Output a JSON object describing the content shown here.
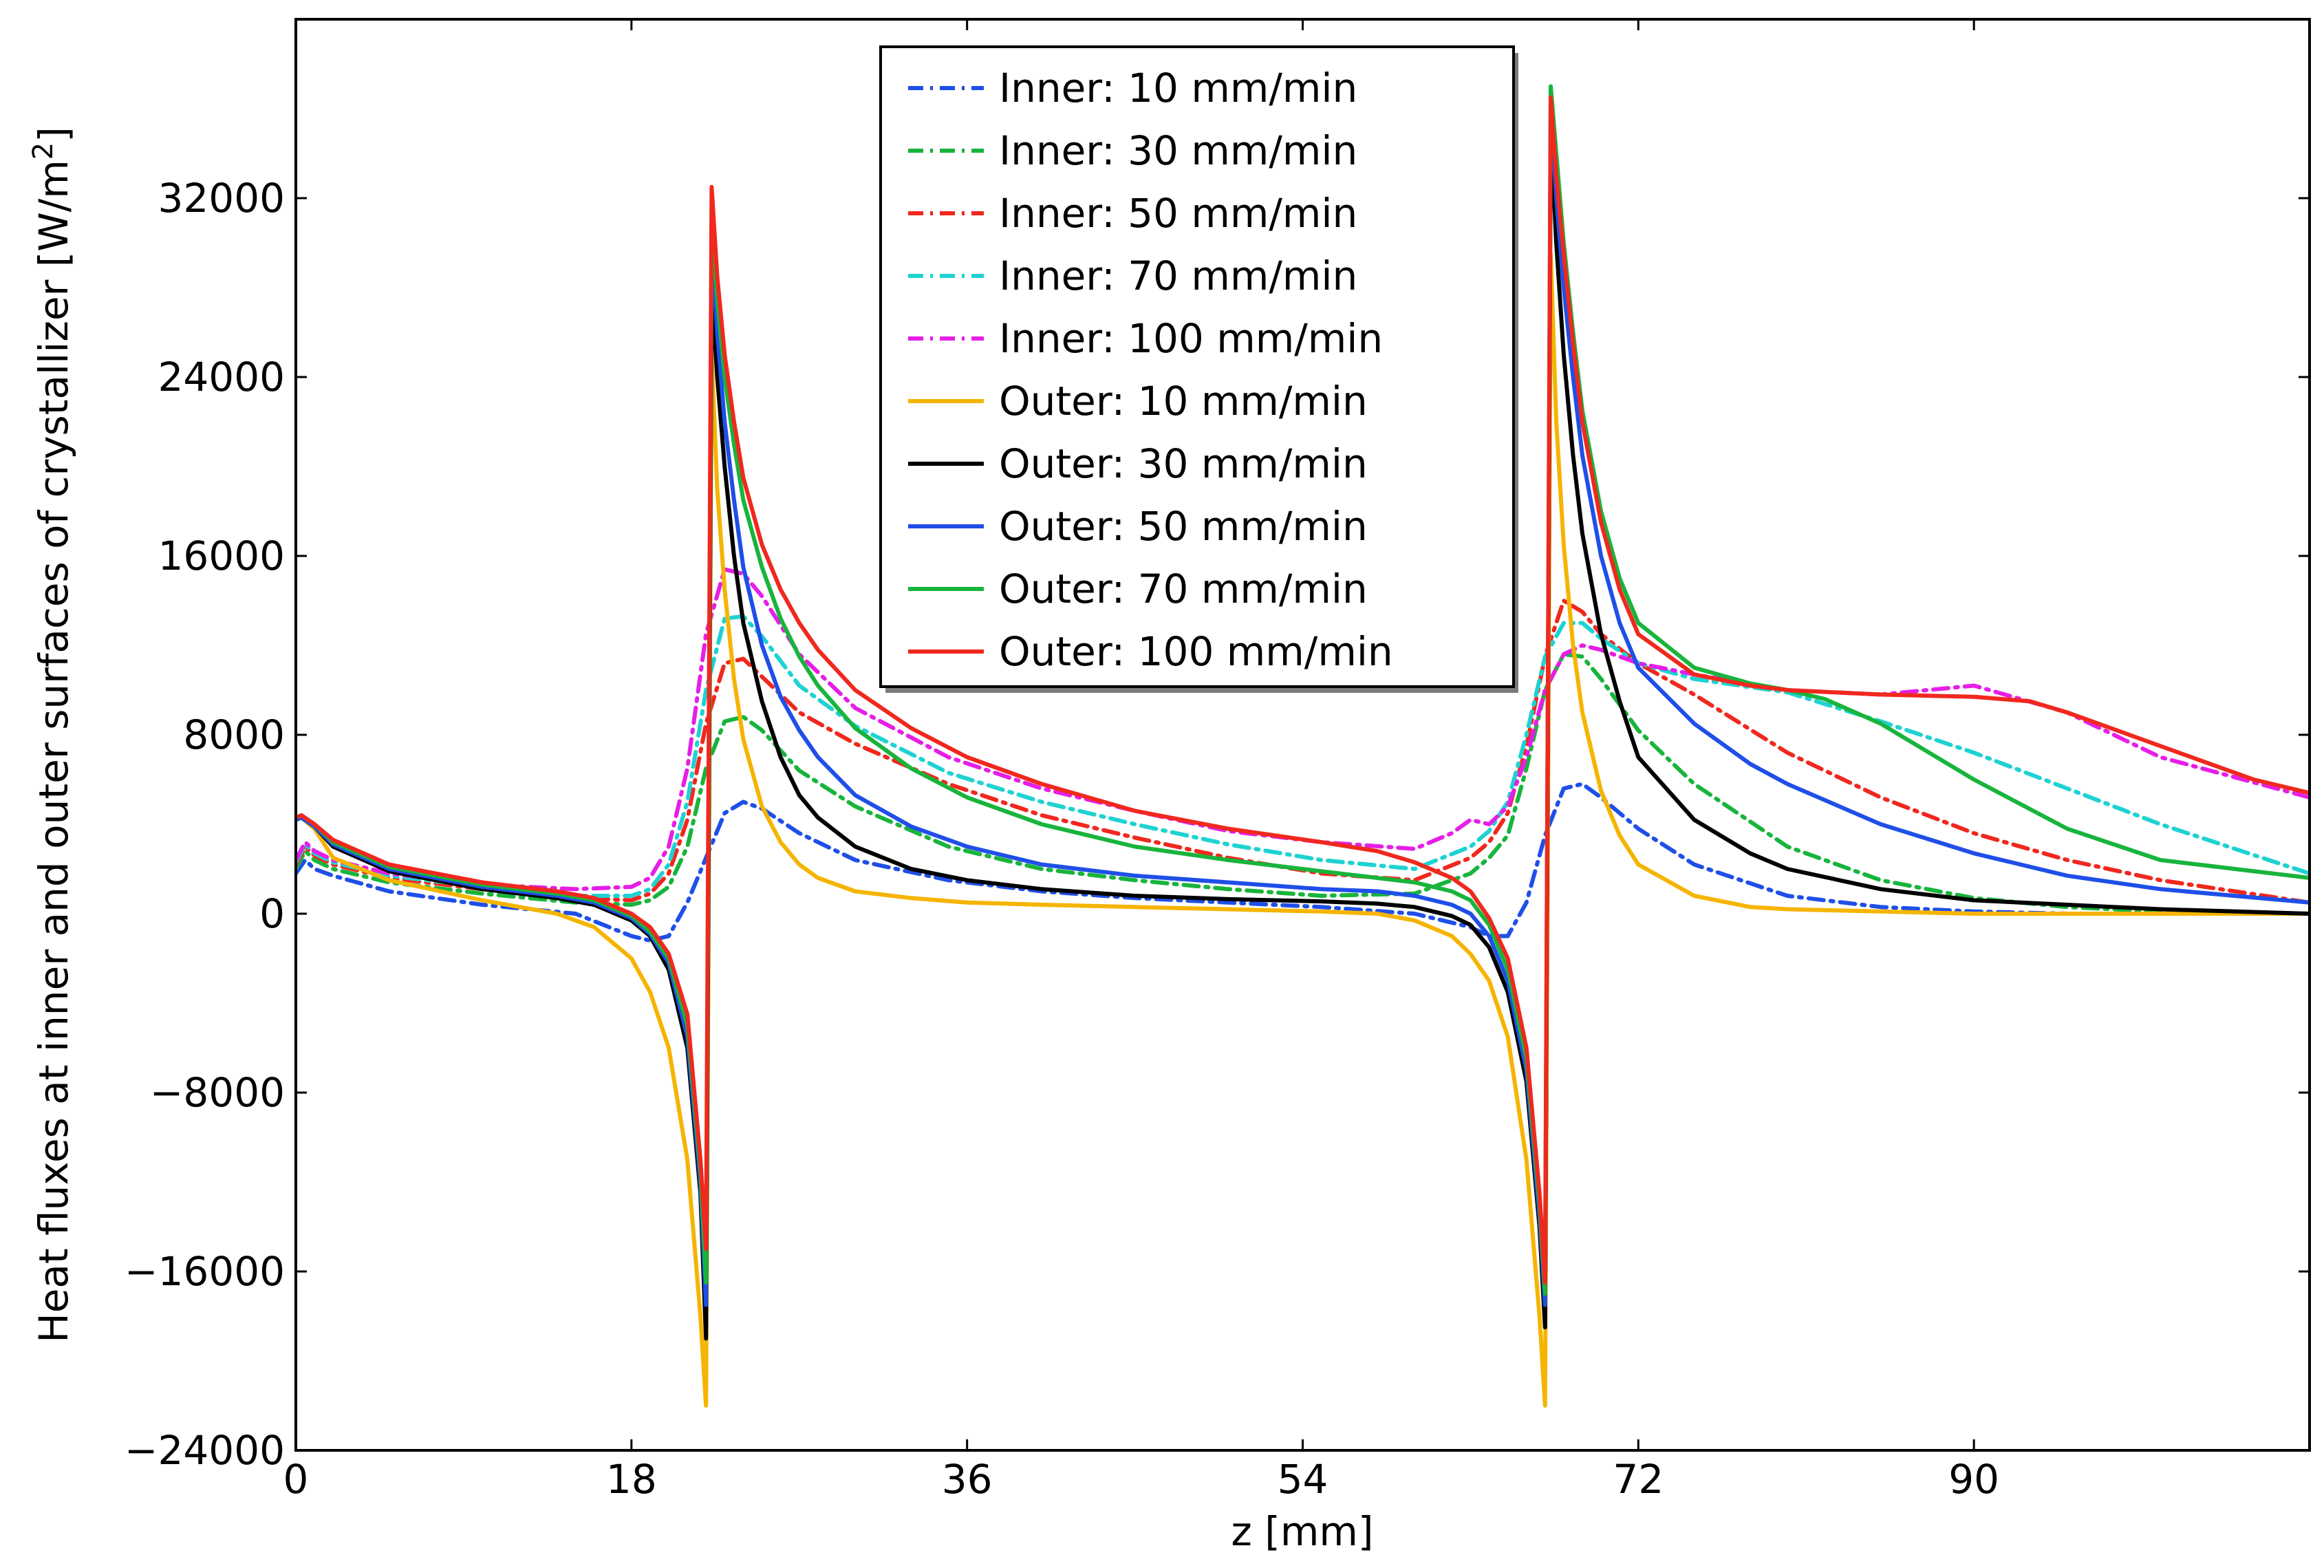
{
  "chart_data": {
    "type": "line",
    "title": "",
    "xlabel": "z [mm]",
    "ylabel": "Heat fluxes at inner and outer surfaces of crystallizer [W/m",
    "ylabel_superscript": "2",
    "ylabel_suffix": "]",
    "xlim": [
      0,
      108
    ],
    "ylim": [
      -24000,
      40000
    ],
    "xticks": [
      0,
      18,
      36,
      54,
      72,
      90
    ],
    "xtick_labels": [
      "0",
      "18",
      "36",
      "54",
      "72",
      "90"
    ],
    "yticks": [
      -24000,
      -16000,
      -8000,
      0,
      8000,
      16000,
      24000,
      32000
    ],
    "ytick_labels": [
      "−24000",
      "−16000",
      "−8000",
      "0",
      "8000",
      "16000",
      "24000",
      "32000"
    ],
    "legend_position": "top-center",
    "series": [
      {
        "name": "Inner: 10 mm/min",
        "color": "#1f4fe8",
        "dash": "dashdot",
        "x": [
          0,
          0.5,
          1,
          2,
          5,
          10,
          15,
          18,
          19,
          20,
          21,
          22,
          23,
          24,
          25,
          27,
          30,
          35,
          40,
          45,
          50,
          55,
          60,
          63,
          64,
          65,
          66,
          67,
          68,
          69,
          70,
          72,
          75,
          80,
          85,
          90,
          95,
          100,
          108
        ],
        "y": [
          1800,
          2400,
          2000,
          1700,
          1000,
          400,
          0,
          -1000,
          -1200,
          -1000,
          500,
          2500,
          4500,
          5000,
          4700,
          3600,
          2400,
          1500,
          1000,
          700,
          500,
          300,
          0,
          -600,
          -1000,
          -1000,
          500,
          3500,
          5600,
          5800,
          5200,
          3800,
          2200,
          800,
          300,
          100,
          0,
          0,
          0
        ]
      },
      {
        "name": "Inner: 30 mm/min",
        "color": "#18b43c",
        "dash": "dashdot",
        "x": [
          0,
          0.5,
          1,
          2,
          5,
          10,
          15,
          18,
          19,
          20,
          21,
          22,
          23,
          24,
          25,
          27,
          30,
          35,
          40,
          45,
          50,
          55,
          60,
          63,
          64,
          65,
          66,
          67,
          68,
          69,
          70,
          72,
          75,
          80,
          85,
          90,
          95,
          100,
          108
        ],
        "y": [
          2000,
          2800,
          2400,
          2000,
          1400,
          900,
          500,
          400,
          600,
          1200,
          3000,
          6500,
          8600,
          8800,
          8200,
          6400,
          4800,
          3000,
          2000,
          1500,
          1100,
          800,
          900,
          1800,
          2500,
          3500,
          6500,
          10000,
          11600,
          11500,
          10500,
          8200,
          5800,
          3000,
          1500,
          700,
          300,
          100,
          0
        ]
      },
      {
        "name": "Inner: 50 mm/min",
        "color": "#f0281e",
        "dash": "dashdot",
        "x": [
          0,
          0.5,
          1,
          2,
          5,
          10,
          15,
          18,
          19,
          20,
          21,
          22,
          23,
          24,
          25,
          27,
          30,
          35,
          40,
          45,
          50,
          55,
          60,
          63,
          64,
          65,
          66,
          67,
          68,
          69,
          70,
          72,
          75,
          80,
          85,
          90,
          95,
          100,
          108
        ],
        "y": [
          2200,
          3000,
          2600,
          2200,
          1600,
          1100,
          700,
          600,
          900,
          1800,
          4200,
          8500,
          11200,
          11400,
          10600,
          9000,
          7600,
          5800,
          4400,
          3400,
          2500,
          1800,
          1500,
          2500,
          3200,
          4500,
          7500,
          11500,
          14000,
          13500,
          12500,
          11200,
          9800,
          7200,
          5200,
          3600,
          2400,
          1500,
          500
        ]
      },
      {
        "name": "Inner: 70 mm/min",
        "color": "#1ed2d2",
        "dash": "dashdot",
        "x": [
          0,
          0.5,
          1,
          2,
          5,
          10,
          15,
          18,
          19,
          20,
          21,
          22,
          23,
          24,
          25,
          27,
          30,
          35,
          40,
          45,
          50,
          55,
          60,
          63,
          64,
          65,
          66,
          67,
          68,
          69,
          70,
          72,
          75,
          80,
          85,
          90,
          95,
          100,
          108
        ],
        "y": [
          2300,
          3100,
          2700,
          2300,
          1700,
          1200,
          800,
          800,
          1100,
          2200,
          5000,
          10000,
          13200,
          13300,
          12400,
          10200,
          8400,
          6300,
          5000,
          4000,
          3100,
          2400,
          2000,
          3000,
          3700,
          5000,
          8000,
          11500,
          13000,
          13000,
          12300,
          11200,
          10500,
          9900,
          8600,
          7200,
          5600,
          4000,
          1800
        ]
      },
      {
        "name": "Inner: 100 mm/min",
        "color": "#e61ee6",
        "dash": "dashdot",
        "x": [
          0,
          0.5,
          1,
          2,
          5,
          10,
          15,
          18,
          19,
          20,
          21,
          22,
          23,
          24,
          25,
          27,
          30,
          35,
          40,
          45,
          50,
          55,
          60,
          62,
          63,
          64,
          65,
          66,
          67,
          68,
          69,
          70,
          72,
          75,
          80,
          85,
          90,
          95,
          100,
          108
        ],
        "y": [
          2400,
          3200,
          2800,
          2400,
          1800,
          1300,
          1100,
          1200,
          1600,
          3000,
          6500,
          12500,
          15400,
          15200,
          14200,
          11600,
          9200,
          7000,
          5600,
          4600,
          3700,
          3200,
          2900,
          3600,
          4200,
          4000,
          4800,
          7000,
          10000,
          11600,
          12000,
          11800,
          11200,
          10700,
          10000,
          9800,
          10200,
          9000,
          7000,
          5200
        ]
      },
      {
        "name": "Outer: 10 mm/min",
        "color": "#f5b400",
        "dash": "solid",
        "x": [
          0,
          0.3,
          1,
          2,
          5,
          10,
          14,
          16,
          18,
          19,
          20,
          21,
          21.7,
          22.0,
          22.3,
          22.6,
          23,
          23.5,
          24,
          25,
          26,
          27,
          28,
          30,
          33,
          36,
          40,
          45,
          50,
          55,
          58,
          60,
          62,
          63,
          64,
          65,
          66,
          66.7,
          67.0,
          67.3,
          67.6,
          68,
          68.5,
          69,
          70,
          71,
          72,
          75,
          78,
          80,
          85,
          90,
          100,
          108
        ],
        "y": [
          4200,
          4300,
          3800,
          2500,
          1500,
          600,
          0,
          -600,
          -2000,
          -3500,
          -6000,
          -11000,
          -18000,
          -22000,
          25000,
          19000,
          14500,
          10500,
          7800,
          4800,
          3200,
          2200,
          1600,
          1000,
          700,
          500,
          400,
          300,
          200,
          100,
          0,
          -300,
          -1000,
          -1800,
          -3000,
          -5500,
          -11000,
          -18000,
          -22000,
          29500,
          22000,
          16500,
          12000,
          9000,
          5500,
          3500,
          2200,
          800,
          300,
          200,
          100,
          0,
          0,
          0
        ]
      },
      {
        "name": "Outer: 30 mm/min",
        "color": "#000000",
        "dash": "solid",
        "x": [
          0,
          0.3,
          1,
          2,
          5,
          10,
          14,
          16,
          18,
          19,
          20,
          21,
          21.7,
          22.0,
          22.3,
          22.6,
          23,
          23.5,
          24,
          25,
          26,
          27,
          28,
          30,
          33,
          36,
          40,
          45,
          50,
          55,
          58,
          60,
          62,
          63,
          64,
          65,
          66,
          66.7,
          67.0,
          67.3,
          67.6,
          68,
          68.5,
          69,
          70,
          71,
          72,
          75,
          78,
          80,
          85,
          90,
          100,
          108
        ],
        "y": [
          4200,
          4300,
          3900,
          3000,
          1900,
          1100,
          700,
          400,
          -300,
          -1000,
          -2500,
          -6000,
          -12500,
          -19000,
          28000,
          24000,
          20000,
          16000,
          13000,
          9500,
          7000,
          5300,
          4300,
          3000,
          2000,
          1500,
          1100,
          800,
          650,
          550,
          450,
          300,
          -100,
          -500,
          -1500,
          -3500,
          -7500,
          -14000,
          -18500,
          35000,
          30000,
          25000,
          20500,
          17000,
          12500,
          9500,
          7000,
          4200,
          2700,
          2000,
          1100,
          600,
          200,
          0
        ]
      },
      {
        "name": "Outer: 50 mm/min",
        "color": "#1f4fe8",
        "dash": "solid",
        "x": [
          0,
          0.3,
          1,
          2,
          5,
          10,
          14,
          16,
          18,
          19,
          20,
          21,
          21.7,
          22.0,
          22.3,
          22.6,
          23,
          23.5,
          24,
          25,
          26,
          27,
          28,
          30,
          33,
          36,
          40,
          45,
          50,
          55,
          58,
          60,
          62,
          63,
          64,
          65,
          66,
          66.7,
          67.0,
          67.3,
          67.6,
          68,
          68.5,
          69,
          70,
          71,
          72,
          75,
          78,
          80,
          85,
          90,
          95,
          100,
          108
        ],
        "y": [
          4200,
          4300,
          3900,
          3100,
          2000,
          1200,
          800,
          500,
          -200,
          -900,
          -2200,
          -5500,
          -12000,
          -17500,
          30000,
          26000,
          22000,
          18500,
          15500,
          12000,
          9700,
          8200,
          7000,
          5300,
          3900,
          3000,
          2200,
          1700,
          1400,
          1100,
          1000,
          800,
          400,
          0,
          -1000,
          -3000,
          -7000,
          -13500,
          -17500,
          36000,
          32000,
          28000,
          24000,
          20500,
          16000,
          13000,
          11000,
          8500,
          6700,
          5800,
          4000,
          2700,
          1700,
          1100,
          500
        ]
      },
      {
        "name": "Outer: 70 mm/min",
        "color": "#18b43c",
        "dash": "solid",
        "x": [
          0,
          0.3,
          1,
          2,
          5,
          10,
          14,
          16,
          18,
          19,
          20,
          21,
          21.7,
          22.0,
          22.3,
          22.6,
          23,
          23.5,
          24,
          25,
          26,
          27,
          28,
          30,
          33,
          36,
          40,
          45,
          50,
          55,
          58,
          60,
          62,
          63,
          64,
          65,
          66,
          66.7,
          67.0,
          67.3,
          67.6,
          68,
          68.5,
          69,
          70,
          71,
          72,
          75,
          78,
          80,
          82,
          85,
          90,
          95,
          100,
          108
        ],
        "y": [
          4300,
          4400,
          4000,
          3200,
          2100,
          1300,
          900,
          600,
          -100,
          -800,
          -2000,
          -5000,
          -11500,
          -16500,
          31000,
          27500,
          24000,
          21000,
          18500,
          15500,
          13200,
          11500,
          10200,
          8300,
          6500,
          5200,
          4000,
          3000,
          2400,
          1900,
          1600,
          1400,
          1000,
          600,
          -500,
          -2500,
          -6500,
          -13000,
          -17000,
          37000,
          34000,
          30000,
          26000,
          22500,
          18000,
          15000,
          13000,
          11000,
          10300,
          10000,
          9600,
          8500,
          6000,
          3800,
          2400,
          1600
        ]
      },
      {
        "name": "Outer: 100 mm/min",
        "color": "#f0281e",
        "dash": "solid",
        "x": [
          0,
          0.3,
          1,
          2,
          5,
          10,
          14,
          16,
          18,
          19,
          20,
          21,
          21.7,
          22.0,
          22.3,
          22.6,
          23,
          23.5,
          24,
          25,
          26,
          27,
          28,
          30,
          33,
          36,
          40,
          45,
          50,
          55,
          58,
          60,
          62,
          63,
          64,
          65,
          66,
          66.7,
          67.0,
          67.3,
          67.6,
          68,
          68.5,
          69,
          70,
          71,
          72,
          75,
          78,
          80,
          85,
          90,
          93,
          95,
          100,
          105,
          108
        ],
        "y": [
          4300,
          4400,
          4000,
          3300,
          2200,
          1400,
          1000,
          700,
          0,
          -600,
          -1800,
          -4500,
          -11000,
          -15000,
          32500,
          28500,
          25000,
          22000,
          19500,
          16500,
          14500,
          13000,
          11800,
          10000,
          8300,
          7000,
          5800,
          4600,
          3800,
          3200,
          2800,
          2300,
          1600,
          1000,
          -200,
          -2000,
          -6000,
          -12500,
          -16500,
          36500,
          33000,
          29500,
          25500,
          22000,
          17500,
          14500,
          12500,
          10700,
          10200,
          10000,
          9800,
          9700,
          9500,
          9000,
          7500,
          6000,
          5400
        ]
      }
    ]
  }
}
